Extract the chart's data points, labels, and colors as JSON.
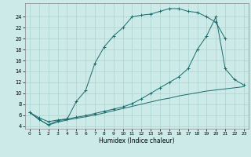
{
  "xlabel": "Humidex (Indice chaleur)",
  "bg_color": "#cceae8",
  "grid_color": "#aad4d0",
  "line_color": "#1a6b6b",
  "xlim": [
    -0.5,
    23.5
  ],
  "ylim": [
    3.5,
    26.5
  ],
  "yticks": [
    4,
    6,
    8,
    10,
    12,
    14,
    16,
    18,
    20,
    22,
    24
  ],
  "xticks": [
    0,
    1,
    2,
    3,
    4,
    5,
    6,
    7,
    8,
    9,
    10,
    11,
    12,
    13,
    14,
    15,
    16,
    17,
    18,
    19,
    20,
    21,
    22,
    23
  ],
  "line1_x": [
    0,
    1,
    2,
    3,
    4,
    5,
    6,
    7,
    8,
    9,
    10,
    11,
    12,
    13,
    14,
    15,
    16,
    17,
    18,
    19,
    20,
    21
  ],
  "line1_y": [
    6.5,
    5.2,
    4.2,
    5.0,
    5.2,
    8.5,
    10.5,
    15.5,
    18.5,
    20.5,
    22.0,
    24.0,
    24.3,
    24.5,
    25.0,
    25.5,
    25.5,
    25.0,
    24.8,
    24.0,
    23.0,
    20.0
  ],
  "line2_x": [
    0,
    1,
    2,
    3,
    4,
    5,
    6,
    7,
    8,
    9,
    10,
    11,
    12,
    13,
    14,
    15,
    16,
    17,
    18,
    19,
    20,
    21,
    22,
    23
  ],
  "line2_y": [
    6.5,
    5.2,
    4.2,
    4.7,
    5.1,
    5.4,
    5.7,
    6.0,
    6.4,
    6.8,
    7.2,
    7.6,
    8.0,
    8.4,
    8.8,
    9.1,
    9.5,
    9.8,
    10.1,
    10.4,
    10.6,
    10.8,
    11.0,
    11.2
  ],
  "line3_x": [
    0,
    1,
    2,
    3,
    4,
    5,
    6,
    7,
    8,
    9,
    10,
    11,
    12,
    13,
    14,
    15,
    16,
    17,
    18,
    19,
    20,
    21,
    22,
    23
  ],
  "line3_y": [
    6.5,
    5.5,
    4.8,
    5.1,
    5.3,
    5.6,
    5.9,
    6.3,
    6.7,
    7.1,
    7.5,
    8.1,
    9.0,
    10.0,
    11.0,
    12.0,
    13.0,
    14.5,
    18.0,
    20.5,
    24.0,
    14.5,
    12.5,
    11.5
  ]
}
